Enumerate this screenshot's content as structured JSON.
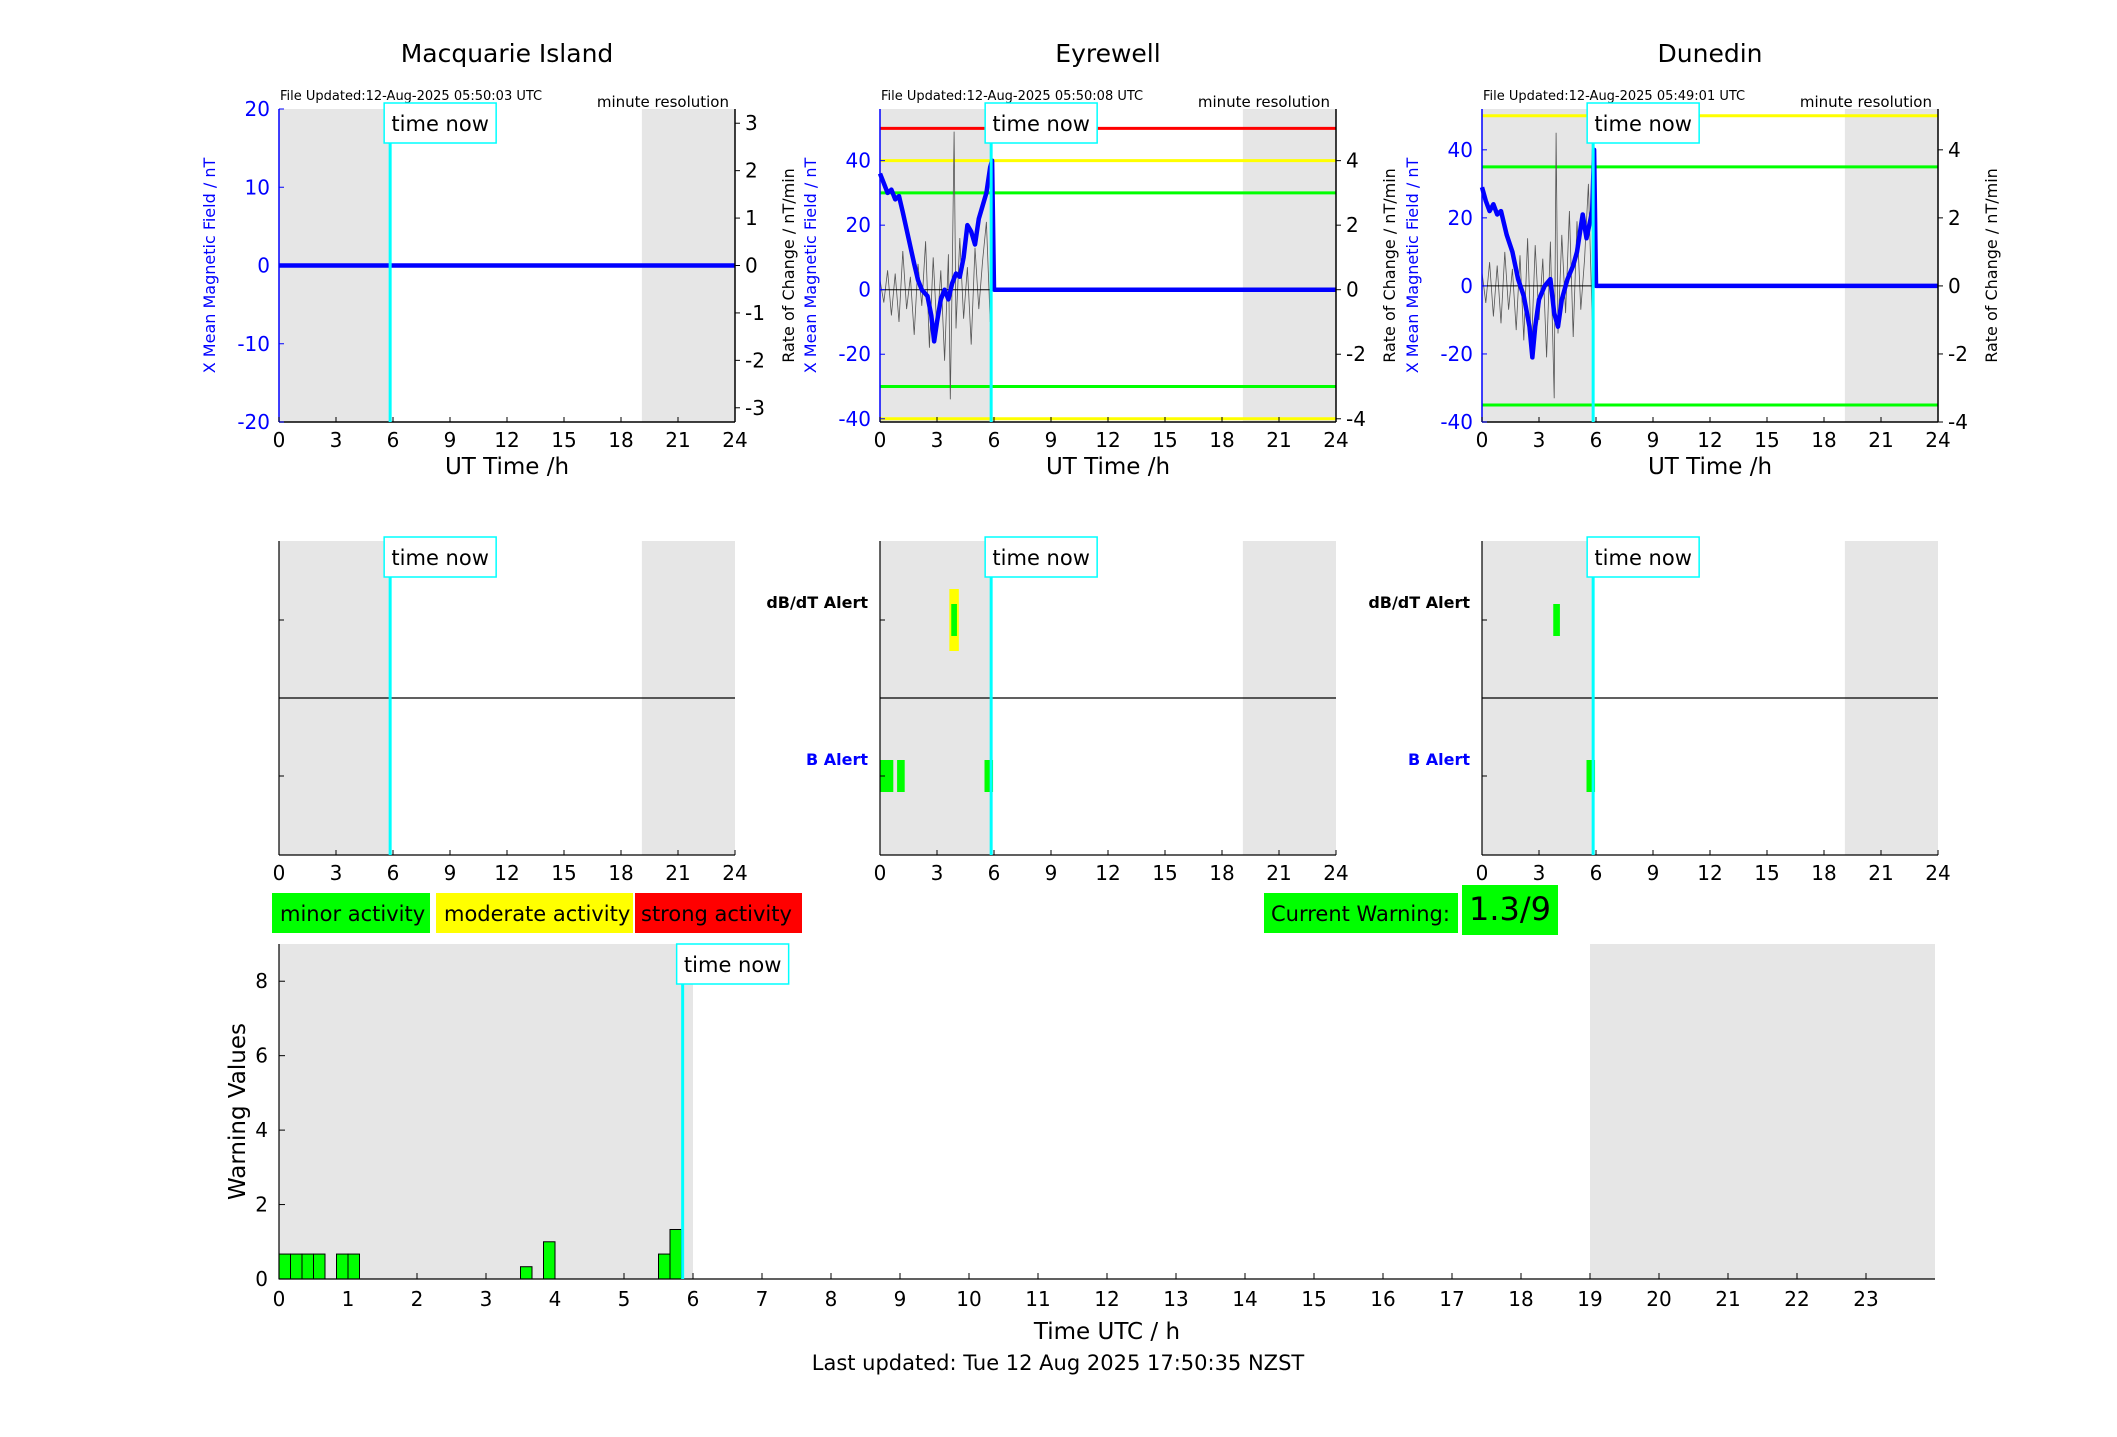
{
  "page": {
    "footer": "Last updated: Tue 12 Aug 2025 17:50:35 NZST"
  },
  "colors": {
    "minor": "#00ff00",
    "moderate": "#ffff00",
    "strong": "#ff0000",
    "time_now": "#00ffff",
    "night_shade": "#e6e6e6",
    "field_line": "#0000ff",
    "roc_line": "#000000"
  },
  "legend": {
    "minor": "minor activity",
    "moderate": "moderate activity",
    "strong": "strong activity"
  },
  "current_warning": {
    "label": "Current Warning:",
    "value": "1.3/9"
  },
  "time_now_label": "time now",
  "time_now_hours": 5.85,
  "alert_labels": {
    "dbdt": "dB/dT Alert",
    "b": "B Alert"
  },
  "stations": [
    {
      "name": "Macquarie Island",
      "file_updated": "File Updated:12-Aug-2025 05:50:03 UTC",
      "resolution": "minute resolution",
      "ylabel_left": "X Mean Magnetic Field / nT",
      "ylabel_right": "Rate of Change / nT/min",
      "xlabel": "UT Time /h",
      "ylim_left": [
        -20,
        20
      ],
      "yticks_left": [
        -20,
        -10,
        0,
        10,
        20
      ],
      "ylim_right": [
        -3.3,
        3.3
      ],
      "yticks_right": [
        -3,
        -2,
        -1,
        0,
        1,
        2,
        3
      ],
      "night_bands": [
        [
          0,
          5.9
        ],
        [
          19.1,
          24
        ]
      ],
      "thresholds": [],
      "field_series": {
        "x": [
          0,
          24
        ],
        "y": [
          0,
          0
        ]
      },
      "dbdt_series": {
        "x": [],
        "y": []
      },
      "dbdt_alerts": [],
      "b_alerts": []
    },
    {
      "name": "Eyrewell",
      "file_updated": "File Updated:12-Aug-2025 05:50:08 UTC",
      "resolution": "minute resolution",
      "ylabel_left": "X Mean Magnetic Field / nT",
      "ylabel_right": "Rate of Change / nT/min",
      "xlabel": "UT Time /h",
      "ylim_left": [
        -41,
        56
      ],
      "yticks_left": [
        -40,
        -20,
        0,
        20,
        40
      ],
      "ylim_right": [
        -4.1,
        5.6
      ],
      "yticks_right": [
        -4,
        -2,
        0,
        2,
        4
      ],
      "night_bands": [
        [
          0,
          5.9
        ],
        [
          19.1,
          24
        ]
      ],
      "thresholds": [
        {
          "value": 50,
          "color": "#ff0000"
        },
        {
          "value": 40,
          "color": "#ffff00"
        },
        {
          "value": 30,
          "color": "#00ff00"
        },
        {
          "value": -30,
          "color": "#00ff00"
        },
        {
          "value": -40,
          "color": "#ffff00"
        }
      ],
      "field_series": {
        "x": [
          0,
          0.2,
          0.4,
          0.6,
          0.8,
          1.0,
          1.2,
          1.5,
          1.8,
          2.0,
          2.2,
          2.5,
          2.7,
          2.85,
          3.0,
          3.2,
          3.4,
          3.6,
          3.8,
          4.0,
          4.2,
          4.4,
          4.6,
          4.8,
          5.0,
          5.2,
          5.4,
          5.6,
          5.8,
          5.9,
          6.0,
          24
        ],
        "y": [
          36,
          33,
          30,
          31,
          28,
          29,
          24,
          16,
          8,
          3,
          0,
          -2,
          -8,
          -16,
          -10,
          -3,
          0,
          -3,
          2,
          5,
          4,
          10,
          20,
          18,
          14,
          22,
          26,
          30,
          38,
          40,
          0,
          0
        ]
      },
      "dbdt_series": {
        "x": [
          0,
          0.2,
          0.4,
          0.6,
          0.8,
          1.0,
          1.2,
          1.4,
          1.6,
          1.8,
          2.0,
          2.2,
          2.4,
          2.6,
          2.8,
          3.0,
          3.2,
          3.4,
          3.6,
          3.7,
          3.8,
          3.9,
          4.0,
          4.2,
          4.4,
          4.6,
          4.8,
          5.0,
          5.2,
          5.4,
          5.6,
          5.8,
          5.9,
          6.0,
          24
        ],
        "y": [
          0.3,
          -0.4,
          0.6,
          -0.8,
          0.5,
          -1.0,
          1.2,
          -0.6,
          0.4,
          -1.4,
          0.8,
          -0.5,
          1.5,
          -1.8,
          1.0,
          -1.3,
          0.6,
          -2.2,
          1.1,
          -3.4,
          0.4,
          4.9,
          -1.2,
          1.6,
          -0.9,
          0.7,
          -1.7,
          1.3,
          -0.6,
          0.9,
          2.1,
          -1.0,
          2.5,
          0,
          0
        ]
      },
      "dbdt_alerts": [
        {
          "x0": 3.65,
          "x1": 4.15,
          "color": "#ffff00",
          "size": "large"
        },
        {
          "x0": 3.75,
          "x1": 4.05,
          "color": "#00ff00",
          "size": "small"
        }
      ],
      "b_alerts": [
        {
          "x0": 0.0,
          "x1": 0.7,
          "color": "#00ff00",
          "size": "small"
        },
        {
          "x0": 0.9,
          "x1": 1.3,
          "color": "#00ff00",
          "size": "small"
        },
        {
          "x0": 5.5,
          "x1": 5.95,
          "color": "#00ff00",
          "size": "small"
        }
      ]
    },
    {
      "name": "Dunedin",
      "file_updated": "File Updated:12-Aug-2025 05:49:01 UTC",
      "resolution": "minute resolution",
      "ylabel_left": "X Mean Magnetic Field / nT",
      "ylabel_right": "Rate of Change / nT/min",
      "xlabel": "UT Time /h",
      "ylim_left": [
        -40,
        52
      ],
      "yticks_left": [
        -40,
        -20,
        0,
        20,
        40
      ],
      "ylim_right": [
        -4,
        5.2
      ],
      "yticks_right": [
        -4,
        -2,
        0,
        2,
        4
      ],
      "night_bands": [
        [
          0,
          5.9
        ],
        [
          19.1,
          24
        ]
      ],
      "thresholds": [
        {
          "value": 50,
          "color": "#ffff00"
        },
        {
          "value": 35,
          "color": "#00ff00"
        },
        {
          "value": -35,
          "color": "#00ff00"
        }
      ],
      "field_series": {
        "x": [
          0,
          0.2,
          0.4,
          0.6,
          0.8,
          1.0,
          1.3,
          1.6,
          1.9,
          2.2,
          2.5,
          2.65,
          2.8,
          3.0,
          3.3,
          3.6,
          3.8,
          4.0,
          4.2,
          4.5,
          4.8,
          5.0,
          5.3,
          5.5,
          5.8,
          5.9,
          6.0,
          24
        ],
        "y": [
          29,
          25,
          22,
          24,
          21,
          22,
          15,
          10,
          2,
          -3,
          -12,
          -21,
          -12,
          -4,
          0,
          2,
          -8,
          -12,
          -4,
          2,
          6,
          10,
          21,
          14,
          22,
          40,
          0,
          0
        ]
      },
      "dbdt_series": {
        "x": [
          0,
          0.2,
          0.4,
          0.6,
          0.8,
          1.0,
          1.2,
          1.4,
          1.6,
          1.8,
          2.0,
          2.2,
          2.4,
          2.6,
          2.8,
          3.0,
          3.2,
          3.4,
          3.6,
          3.8,
          3.9,
          4.0,
          4.2,
          4.4,
          4.6,
          4.8,
          5.0,
          5.2,
          5.4,
          5.6,
          5.8,
          5.9,
          6.0,
          24
        ],
        "y": [
          0.4,
          -0.5,
          0.7,
          -0.9,
          0.6,
          -1.1,
          1.0,
          -0.7,
          0.5,
          -1.3,
          0.9,
          -1.6,
          1.4,
          -1.9,
          1.2,
          -1.0,
          0.8,
          -2.1,
          1.3,
          -3.3,
          4.5,
          -1.4,
          1.5,
          -0.8,
          2.2,
          -1.5,
          1.9,
          -0.7,
          0.8,
          3.0,
          -1.0,
          1.6,
          0,
          0
        ]
      },
      "dbdt_alerts": [
        {
          "x0": 3.75,
          "x1": 4.1,
          "color": "#00ff00",
          "size": "small"
        }
      ],
      "b_alerts": [
        {
          "x0": 5.5,
          "x1": 5.95,
          "color": "#00ff00",
          "size": "small"
        }
      ]
    }
  ],
  "chart_data": {
    "type": "bar",
    "xlabel": "Time UTC / h",
    "ylabel": "Warning Values",
    "xlim": [
      0,
      24
    ],
    "ylim": [
      0,
      9
    ],
    "xticks": [
      0,
      1,
      2,
      3,
      4,
      5,
      6,
      7,
      8,
      9,
      10,
      11,
      12,
      13,
      14,
      15,
      16,
      17,
      18,
      19,
      20,
      21,
      22,
      23
    ],
    "yticks": [
      0,
      2,
      4,
      6,
      8
    ],
    "night_bands": [
      [
        0,
        6.0
      ],
      [
        19.0,
        24
      ]
    ],
    "bar_width_hours": 0.1667,
    "x": [
      0.0833,
      0.25,
      0.4167,
      0.5833,
      0.9167,
      1.0833,
      3.5833,
      3.9167,
      5.5833,
      5.75
    ],
    "values": [
      0.67,
      0.67,
      0.67,
      0.67,
      0.67,
      0.67,
      0.33,
      1.0,
      0.67,
      1.33
    ],
    "bar_color": "#00ff00"
  }
}
